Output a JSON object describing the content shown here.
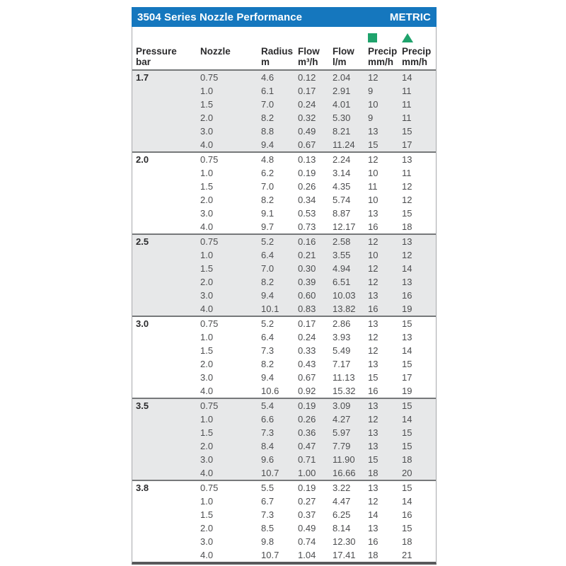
{
  "title_bar": {
    "title": "3504 Series Nozzle Performance",
    "units_label": "METRIC"
  },
  "colors": {
    "header_blue": "#1577be",
    "accent_green": "#1fa36c",
    "row_shade": "#e7e8e9",
    "border_gray": "#a7a9ac",
    "bottom_border": "#58595b"
  },
  "columns": [
    {
      "key": "pressure",
      "label1": "Pressure",
      "label2": "bar",
      "icon": null
    },
    {
      "key": "nozzle",
      "label1": "Nozzle",
      "label2": "",
      "icon": null
    },
    {
      "key": "radius",
      "label1": "Radius",
      "label2": "m",
      "icon": null
    },
    {
      "key": "flow-m3h",
      "label1": "Flow",
      "label2": "m³/h",
      "icon": null
    },
    {
      "key": "flow-lm",
      "label1": "Flow",
      "label2": "l/m",
      "icon": null
    },
    {
      "key": "precip-square",
      "label1": "Precip",
      "label2": "mm/h",
      "icon": "green-square"
    },
    {
      "key": "precip-triangle",
      "label1": "Precip",
      "label2": "mm/h",
      "icon": "green-triangle"
    }
  ],
  "groups": [
    {
      "pressure": "1.7",
      "rows": [
        [
          "0.75",
          "4.6",
          "0.12",
          "2.04",
          "12",
          "14"
        ],
        [
          "1.0",
          "6.1",
          "0.17",
          "2.91",
          "9",
          "11"
        ],
        [
          "1.5",
          "7.0",
          "0.24",
          "4.01",
          "10",
          "11"
        ],
        [
          "2.0",
          "8.2",
          "0.32",
          "5.30",
          "9",
          "11"
        ],
        [
          "3.0",
          "8.8",
          "0.49",
          "8.21",
          "13",
          "15"
        ],
        [
          "4.0",
          "9.4",
          "0.67",
          "11.24",
          "15",
          "17"
        ]
      ]
    },
    {
      "pressure": "2.0",
      "rows": [
        [
          "0.75",
          "4.8",
          "0.13",
          "2.24",
          "12",
          "13"
        ],
        [
          "1.0",
          "6.2",
          "0.19",
          "3.14",
          "10",
          "11"
        ],
        [
          "1.5",
          "7.0",
          "0.26",
          "4.35",
          "11",
          "12"
        ],
        [
          "2.0",
          "8.2",
          "0.34",
          "5.74",
          "10",
          "12"
        ],
        [
          "3.0",
          "9.1",
          "0.53",
          "8.87",
          "13",
          "15"
        ],
        [
          "4.0",
          "9.7",
          "0.73",
          "12.17",
          "16",
          "18"
        ]
      ]
    },
    {
      "pressure": "2.5",
      "rows": [
        [
          "0.75",
          "5.2",
          "0.16",
          "2.58",
          "12",
          "13"
        ],
        [
          "1.0",
          "6.4",
          "0.21",
          "3.55",
          "10",
          "12"
        ],
        [
          "1.5",
          "7.0",
          "0.30",
          "4.94",
          "12",
          "14"
        ],
        [
          "2.0",
          "8.2",
          "0.39",
          "6.51",
          "12",
          "13"
        ],
        [
          "3.0",
          "9.4",
          "0.60",
          "10.03",
          "13",
          "16"
        ],
        [
          "4.0",
          "10.1",
          "0.83",
          "13.82",
          "16",
          "19"
        ]
      ]
    },
    {
      "pressure": "3.0",
      "rows": [
        [
          "0.75",
          "5.2",
          "0.17",
          "2.86",
          "13",
          "15"
        ],
        [
          "1.0",
          "6.4",
          "0.24",
          "3.93",
          "12",
          "13"
        ],
        [
          "1.5",
          "7.3",
          "0.33",
          "5.49",
          "12",
          "14"
        ],
        [
          "2.0",
          "8.2",
          "0.43",
          "7.17",
          "13",
          "15"
        ],
        [
          "3.0",
          "9.4",
          "0.67",
          "11.13",
          "15",
          "17"
        ],
        [
          "4.0",
          "10.6",
          "0.92",
          "15.32",
          "16",
          "19"
        ]
      ]
    },
    {
      "pressure": "3.5",
      "rows": [
        [
          "0.75",
          "5.4",
          "0.19",
          "3.09",
          "13",
          "15"
        ],
        [
          "1.0",
          "6.6",
          "0.26",
          "4.27",
          "12",
          "14"
        ],
        [
          "1.5",
          "7.3",
          "0.36",
          "5.97",
          "13",
          "15"
        ],
        [
          "2.0",
          "8.4",
          "0.47",
          "7.79",
          "13",
          "15"
        ],
        [
          "3.0",
          "9.6",
          "0.71",
          "11.90",
          "15",
          "18"
        ],
        [
          "4.0",
          "10.7",
          "1.00",
          "16.66",
          "18",
          "20"
        ]
      ]
    },
    {
      "pressure": "3.8",
      "rows": [
        [
          "0.75",
          "5.5",
          "0.19",
          "3.22",
          "13",
          "15"
        ],
        [
          "1.0",
          "6.7",
          "0.27",
          "4.47",
          "12",
          "14"
        ],
        [
          "1.5",
          "7.3",
          "0.37",
          "6.25",
          "14",
          "16"
        ],
        [
          "2.0",
          "8.5",
          "0.49",
          "8.14",
          "13",
          "15"
        ],
        [
          "3.0",
          "9.8",
          "0.74",
          "12.30",
          "16",
          "18"
        ],
        [
          "4.0",
          "10.7",
          "1.04",
          "17.41",
          "18",
          "21"
        ]
      ]
    }
  ]
}
